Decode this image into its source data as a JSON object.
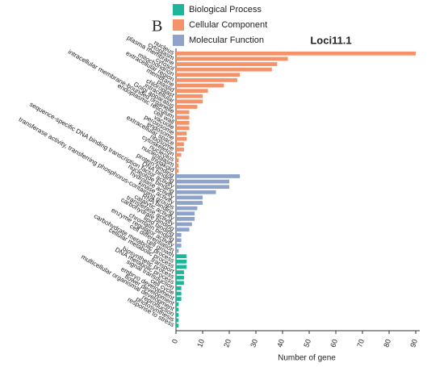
{
  "chart_data": {
    "type": "barh",
    "title": "Loci11.1",
    "panel_label": "B",
    "x_label": "Number of gene",
    "xlim": [
      0,
      90
    ],
    "xticks": [
      0,
      10,
      20,
      30,
      40,
      50,
      60,
      70,
      80,
      90
    ],
    "series": [
      {
        "name": "Cellular Component",
        "color": "#f4926a",
        "categories": [
          "nucleus",
          "cytoplasm",
          "plasma membrane",
          "cytosol",
          "mitochondrion",
          "extracellular region",
          "membrane",
          "plastid",
          "chloroplast",
          "intracellular",
          "Golgi apparatus",
          "intracellular membrane-bounded organelle",
          "endoplasmic reticulum",
          "cell wall",
          "vacuole",
          "peroxisome",
          "endosome",
          "extracellular space",
          "ribosome",
          "cytoskeleton",
          "nucleolus",
          "nucleoplasm",
          "thylakoid"
        ],
        "values": [
          90,
          42,
          38,
          36,
          24,
          23,
          18,
          12,
          10,
          10,
          8,
          5,
          5,
          5,
          5,
          4,
          4,
          3,
          3,
          2,
          1,
          1,
          1
        ]
      },
      {
        "name": "Molecular Function",
        "color": "#8fa3c9",
        "categories": [
          "protein binding",
          "DNA binding",
          "sequence-specific DNA binding transcription factor activity",
          "nucleotide binding",
          "hydrolase activity",
          "kinase activity",
          "transferase activity, transferring phosphorus-containing groups",
          "RNA binding",
          "catalytic activity",
          "transferase activity",
          "carbohydrate binding",
          "lipid binding",
          "chromatin binding",
          "enzyme regulator activity",
          "cell differentiation"
        ],
        "values": [
          24,
          20,
          20,
          15,
          10,
          10,
          8,
          7,
          7,
          6,
          5,
          2,
          2,
          2,
          1
        ]
      },
      {
        "name": "Biological Process",
        "color": "#1fb59a",
        "categories": [
          "cell growth",
          "carbohydrate metabolic process",
          "cellular metabolic process",
          "transport",
          "biosynthetic process",
          "DNA metabolic process",
          "signal transduction",
          "cell cycle",
          "embryo development",
          "flower development",
          "multicellular organismal development",
          "reproduction",
          "photosynthesis",
          "response to stress"
        ],
        "values": [
          4,
          4,
          4,
          3,
          3,
          3,
          2,
          2,
          2,
          1,
          1,
          1,
          1,
          1
        ]
      }
    ]
  }
}
